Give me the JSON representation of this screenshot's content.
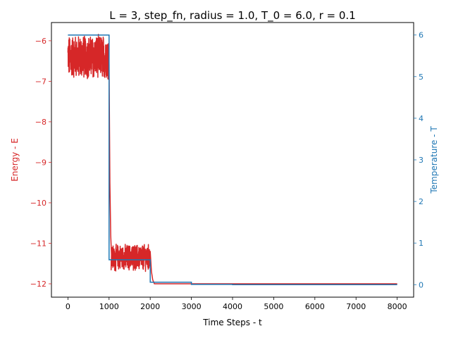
{
  "chart_data": {
    "type": "line",
    "title": "L = 3, step_fn, radius = 1.0, T_0 = 6.0, r = 0.1",
    "xlabel": "Time Steps - t",
    "ylabel_left": "Energy - E",
    "ylabel_right": "Temperature - T",
    "xlim": [
      -400,
      8400
    ],
    "ylim_left": [
      -12.33,
      -5.55
    ],
    "ylim_right": [
      -0.3,
      6.3
    ],
    "x_ticks": [
      0,
      1000,
      2000,
      3000,
      4000,
      5000,
      6000,
      7000,
      8000
    ],
    "y_ticks_left": [
      -12,
      -11,
      -10,
      -9,
      -8,
      -7,
      -6
    ],
    "y_ticks_right": [
      0,
      1,
      2,
      3,
      4,
      5,
      6
    ],
    "grid": false,
    "colors": {
      "energy": "#d62728",
      "temperature": "#1f77b4",
      "axis": "#000000"
    },
    "series": [
      {
        "axis": "left",
        "noisy_segments": [
          {
            "x_start": 0,
            "x_end": 1000,
            "mean": -6.4,
            "min": -7.35,
            "max": -5.82
          },
          {
            "x_start": 1050,
            "x_end": 2000,
            "mean": -11.35,
            "min": -11.85,
            "max": -10.95
          }
        ],
        "transitions": [
          {
            "x": [
              1000,
              1020,
              1040,
              1060
            ],
            "y": [
              -6.5,
              -9.5,
              -10.8,
              -11.3
            ]
          },
          {
            "x": [
              2000,
              2030,
              2060,
              2100
            ],
            "y": [
              -11.2,
              -11.7,
              -11.9,
              -12.0
            ]
          }
        ],
        "flat": {
          "x": [
            2100,
            8000
          ],
          "y": -12.0
        }
      },
      {
        "axis": "right",
        "x": [
          0,
          1000,
          1000,
          2000,
          2000,
          3000,
          3000,
          4000,
          4000,
          8000
        ],
        "y": [
          6.0,
          6.0,
          0.6,
          0.6,
          0.06,
          0.06,
          0.006,
          0.006,
          0.0006,
          0.0006
        ]
      }
    ]
  }
}
